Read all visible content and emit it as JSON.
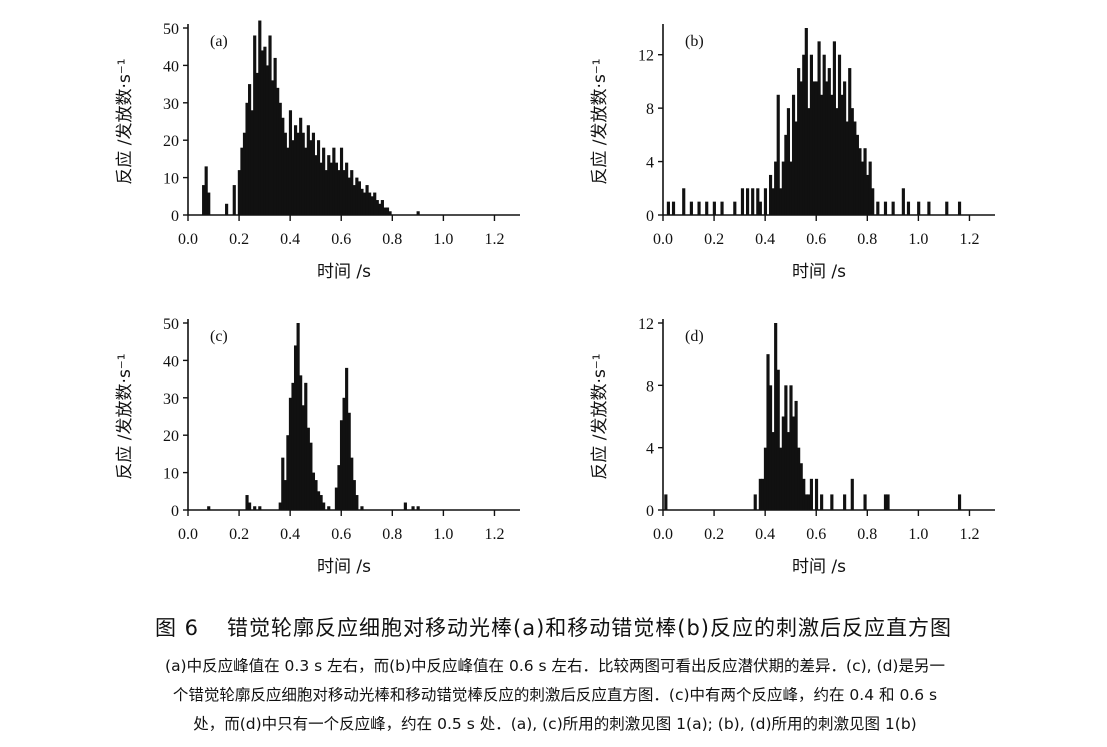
{
  "figure": {
    "number": "图 6",
    "title": "错觉轮廓反应细胞对移动光棒(a)和移动错觉棒(b)反应的刺激后反应直方图",
    "caption_lines": [
      "(a)中反应峰值在 0.3 s 左右，而(b)中反应峰值在 0.6 s 左右．比较两图可看出反应潜伏期的差异．(c), (d)是另一",
      "个错觉轮廓反应细胞对移动光棒和移动错觉棒反应的刺激后反应直方图．(c)中有两个反应峰，约在 0.4 和 0.6 s",
      "处，而(d)中只有一个反应峰，约在 0.5 s 处．(a), (c)所用的刺激见图 1(a); (b), (d)所用的刺激见图 1(b)"
    ]
  },
  "chart_data": [
    {
      "type": "bar",
      "panel": "(a)",
      "xlabel": "时间 /s",
      "ylabel": "反应 /发放数·s⁻¹",
      "xlim": [
        0,
        1.3
      ],
      "ylim": [
        0,
        50
      ],
      "xticks": [
        "0.0",
        "0.2",
        "0.4",
        "0.6",
        "0.8",
        "1.0",
        "1.2"
      ],
      "yticks": [
        "0",
        "10",
        "20",
        "30",
        "40",
        "50"
      ],
      "bin_width": 0.01,
      "x": [
        0.06,
        0.07,
        0.08,
        0.15,
        0.18,
        0.2,
        0.21,
        0.22,
        0.23,
        0.24,
        0.25,
        0.26,
        0.27,
        0.28,
        0.29,
        0.3,
        0.31,
        0.32,
        0.33,
        0.34,
        0.35,
        0.36,
        0.37,
        0.38,
        0.39,
        0.4,
        0.41,
        0.42,
        0.43,
        0.44,
        0.45,
        0.46,
        0.47,
        0.48,
        0.49,
        0.5,
        0.51,
        0.52,
        0.53,
        0.54,
        0.55,
        0.56,
        0.57,
        0.58,
        0.59,
        0.6,
        0.61,
        0.62,
        0.63,
        0.64,
        0.65,
        0.66,
        0.67,
        0.68,
        0.69,
        0.7,
        0.71,
        0.72,
        0.73,
        0.74,
        0.75,
        0.76,
        0.77,
        0.78,
        0.79,
        0.9
      ],
      "values": [
        8,
        13,
        6,
        3,
        8,
        12,
        18,
        22,
        30,
        35,
        28,
        48,
        38,
        52,
        44,
        45,
        40,
        48,
        36,
        42,
        34,
        30,
        26,
        22,
        18,
        28,
        20,
        24,
        22,
        26,
        22,
        18,
        24,
        20,
        22,
        16,
        20,
        14,
        18,
        12,
        16,
        14,
        18,
        14,
        12,
        18,
        12,
        14,
        10,
        12,
        8,
        10,
        9,
        7,
        6,
        8,
        6,
        5,
        6,
        4,
        3,
        4,
        2,
        2,
        1,
        1
      ]
    },
    {
      "type": "bar",
      "panel": "(b)",
      "xlabel": "时间 /s",
      "ylabel": "反应 /发放数·s⁻¹",
      "xlim": [
        0,
        1.3
      ],
      "ylim": [
        0,
        14
      ],
      "xticks": [
        "0.0",
        "0.2",
        "0.4",
        "0.6",
        "0.8",
        "1.0",
        "1.2"
      ],
      "yticks": [
        "0",
        "4",
        "8",
        "12"
      ],
      "bin_width": 0.01,
      "x": [
        0.02,
        0.04,
        0.08,
        0.11,
        0.14,
        0.17,
        0.2,
        0.23,
        0.28,
        0.31,
        0.33,
        0.35,
        0.37,
        0.38,
        0.4,
        0.42,
        0.43,
        0.44,
        0.45,
        0.46,
        0.47,
        0.48,
        0.49,
        0.5,
        0.51,
        0.52,
        0.53,
        0.54,
        0.55,
        0.56,
        0.57,
        0.58,
        0.59,
        0.6,
        0.61,
        0.62,
        0.63,
        0.64,
        0.65,
        0.66,
        0.67,
        0.68,
        0.69,
        0.7,
        0.71,
        0.72,
        0.73,
        0.74,
        0.75,
        0.76,
        0.77,
        0.78,
        0.79,
        0.8,
        0.81,
        0.82,
        0.84,
        0.87,
        0.9,
        0.94,
        0.96,
        1.0,
        1.04,
        1.11,
        1.16
      ],
      "values": [
        1,
        1,
        2,
        1,
        1,
        1,
        1,
        1,
        1,
        2,
        2,
        2,
        2,
        1,
        2,
        3,
        2,
        4,
        9,
        2,
        4,
        6,
        8,
        4,
        9,
        7,
        11,
        10,
        12,
        14,
        8,
        12,
        10,
        10,
        13,
        9,
        12,
        10,
        11,
        9,
        13,
        8,
        12,
        9,
        10,
        7,
        11,
        8,
        7,
        6,
        5,
        4,
        5,
        3,
        4,
        2,
        1,
        1,
        1,
        2,
        1,
        1,
        1,
        1,
        1
      ]
    },
    {
      "type": "bar",
      "panel": "(c)",
      "xlabel": "时间 /s",
      "ylabel": "反应 /发放数·s⁻¹",
      "xlim": [
        0,
        1.3
      ],
      "ylim": [
        0,
        50
      ],
      "xticks": [
        "0.0",
        "0.2",
        "0.4",
        "0.6",
        "0.8",
        "1.0",
        "1.2"
      ],
      "yticks": [
        "0",
        "10",
        "20",
        "30",
        "40",
        "50"
      ],
      "bin_width": 0.01,
      "x": [
        0.08,
        0.23,
        0.24,
        0.26,
        0.28,
        0.36,
        0.37,
        0.38,
        0.39,
        0.4,
        0.41,
        0.42,
        0.43,
        0.44,
        0.45,
        0.46,
        0.47,
        0.48,
        0.49,
        0.5,
        0.51,
        0.52,
        0.53,
        0.55,
        0.58,
        0.59,
        0.6,
        0.61,
        0.62,
        0.63,
        0.64,
        0.65,
        0.66,
        0.68,
        0.85,
        0.88,
        0.9
      ],
      "values": [
        1,
        4,
        2,
        1,
        1,
        2,
        14,
        8,
        20,
        30,
        34,
        44,
        50,
        36,
        28,
        34,
        22,
        18,
        10,
        8,
        5,
        4,
        2,
        1,
        6,
        12,
        24,
        30,
        38,
        26,
        14,
        8,
        4,
        1,
        2,
        1,
        1
      ]
    },
    {
      "type": "bar",
      "panel": "(d)",
      "xlabel": "时间 /s",
      "ylabel": "反应 /发放数·s⁻¹",
      "xlim": [
        0,
        1.3
      ],
      "ylim": [
        0,
        12
      ],
      "xticks": [
        "0.0",
        "0.2",
        "0.4",
        "0.6",
        "0.8",
        "1.0",
        "1.2"
      ],
      "yticks": [
        "0",
        "4",
        "8",
        "12"
      ],
      "bin_width": 0.01,
      "x": [
        0.01,
        0.36,
        0.38,
        0.39,
        0.4,
        0.41,
        0.42,
        0.43,
        0.44,
        0.45,
        0.46,
        0.47,
        0.48,
        0.49,
        0.5,
        0.51,
        0.52,
        0.53,
        0.54,
        0.55,
        0.56,
        0.57,
        0.58,
        0.6,
        0.62,
        0.66,
        0.71,
        0.74,
        0.79,
        0.87,
        0.88,
        1.16
      ],
      "values": [
        1,
        1,
        2,
        2,
        4,
        10,
        8,
        5,
        12,
        9,
        4,
        6,
        8,
        5,
        8,
        6,
        7,
        4,
        3,
        2,
        1,
        1,
        2,
        2,
        1,
        1,
        1,
        2,
        1,
        1,
        1,
        1
      ]
    }
  ]
}
